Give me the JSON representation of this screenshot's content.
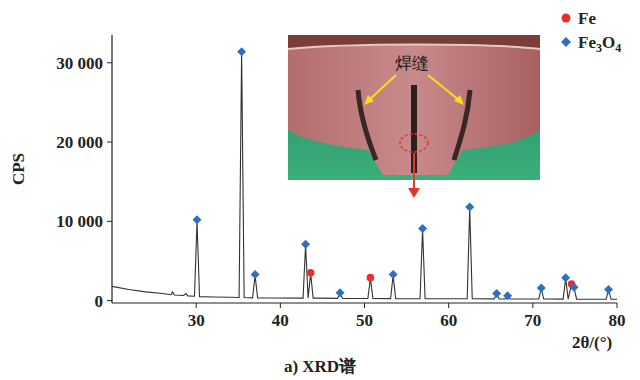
{
  "chart_data": {
    "type": "line",
    "title": "a) XRD谱",
    "x_label": "2θ/(°)",
    "y_label": "CPS",
    "annotation": "焊缝",
    "xlim": [
      20,
      80
    ],
    "ylim": [
      -300,
      33500
    ],
    "xticks": [
      30,
      40,
      50,
      60,
      70,
      80
    ],
    "yticks": [
      0,
      {
        "value": 10000,
        "label": "10 000"
      },
      {
        "value": 20000,
        "label": "20 000"
      },
      {
        "value": 30000,
        "label": "30 000"
      }
    ],
    "grid": false,
    "legend": "upper right",
    "series": [
      {
        "type": "line",
        "color": "#333333",
        "line_style": "solid",
        "x": [
          20,
          22,
          24,
          26,
          27,
          27.2,
          27.4,
          28.5,
          28.8,
          29.0,
          29.8,
          30.1,
          30.4,
          32,
          34,
          35.1,
          35.4,
          35.7,
          36.7,
          37.0,
          37.3,
          39,
          42.7,
          43.0,
          43.3,
          43.6,
          43.9,
          44.5,
          46.8,
          47.1,
          47.4,
          50.4,
          50.7,
          51.0,
          53.1,
          53.4,
          53.7,
          56.6,
          56.9,
          57.2,
          62.2,
          62.5,
          62.8,
          65.4,
          65.7,
          66.0,
          66.7,
          67.0,
          67.3,
          70.7,
          71.0,
          71.3,
          73.6,
          73.9,
          74.2,
          74.6,
          74.9,
          75.2,
          78.7,
          79.0,
          79.3,
          80
        ],
        "values": [
          1800,
          1400,
          1100,
          900,
          750,
          1100,
          700,
          650,
          900,
          600,
          550,
          10000,
          500,
          450,
          420,
          400,
          31300,
          400,
          350,
          3200,
          350,
          330,
          320,
          7000,
          320,
          3400,
          320,
          320,
          280,
          900,
          280,
          260,
          2800,
          260,
          250,
          3200,
          250,
          240,
          9000,
          240,
          230,
          11700,
          230,
          220,
          800,
          220,
          210,
          500,
          210,
          200,
          1500,
          200,
          190,
          2800,
          190,
          2100,
          1600,
          190,
          180,
          1300,
          180,
          180
        ]
      },
      {
        "type": "scatter",
        "name": "Fe",
        "color": "#e8302a",
        "marker": "circle",
        "x": [
          43.6,
          50.7,
          74.6
        ],
        "values": [
          3500,
          2900,
          2100
        ]
      },
      {
        "type": "scatter",
        "name": "Fe3O4",
        "color": "#2f6fc0",
        "marker": "diamond",
        "x": [
          30.1,
          35.4,
          37.0,
          43.0,
          47.1,
          53.4,
          56.9,
          62.5,
          65.7,
          67.0,
          71.0,
          73.9,
          74.9,
          79.0
        ],
        "values": [
          10200,
          31400,
          3300,
          7100,
          1000,
          3300,
          9100,
          11800,
          900,
          600,
          1600,
          2900,
          1700,
          1400
        ]
      }
    ]
  }
}
